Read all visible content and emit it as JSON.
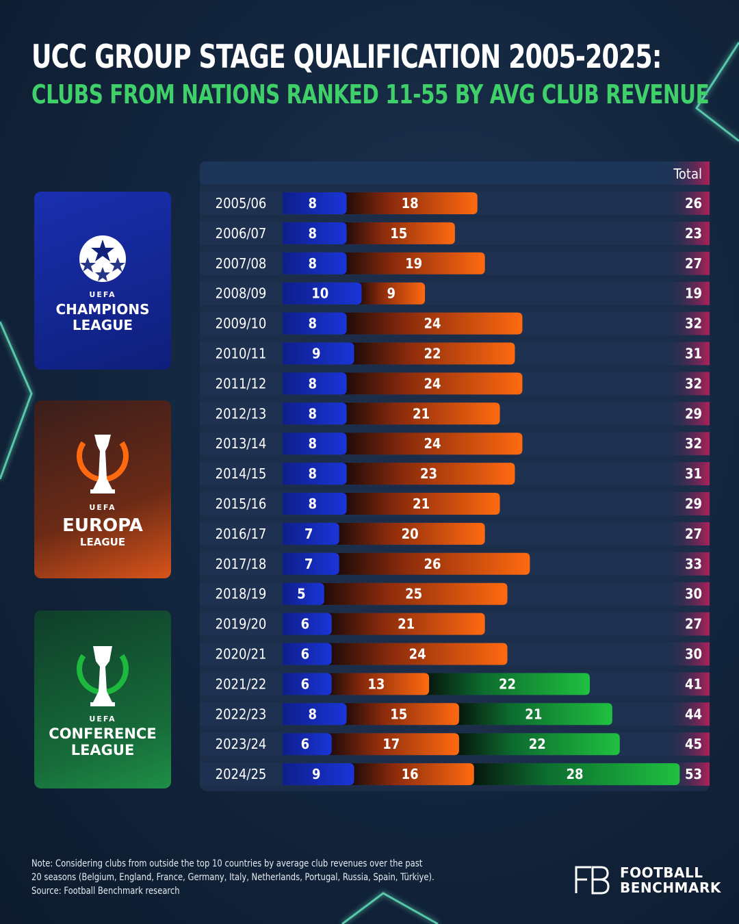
{
  "title": "UCC GROUP STAGE QUALIFICATION 2005-2025:",
  "subtitle": "CLUBS FROM NATIONS RANKED 11-55 BY AVG CLUB REVENUE",
  "colors": {
    "champions_league": "#1428b8",
    "europa_league": "#ff6a10",
    "conference_league": "#1fb83f",
    "title_accent": "#3fd06a",
    "total_column": "#b0205a"
  },
  "competitions": {
    "ucl": {
      "uefa": "UEFA",
      "line1": "CHAMPIONS",
      "line2": "LEAGUE",
      "icon": "starball-icon"
    },
    "uel": {
      "uefa": "UEFA",
      "line1": "EUROPA",
      "line2": "LEAGUE",
      "icon": "europa-trophy-icon"
    },
    "uecl": {
      "uefa": "UEFA",
      "line1": "CONFERENCE",
      "line2": "LEAGUE",
      "icon": "conference-trophy-icon"
    }
  },
  "chart_data": {
    "type": "bar",
    "orientation": "horizontal",
    "stacked": true,
    "total_header": "Total",
    "categories": [
      "2005/06",
      "2006/07",
      "2007/08",
      "2008/09",
      "2009/10",
      "2010/11",
      "2011/12",
      "2012/13",
      "2013/14",
      "2014/15",
      "2015/16",
      "2016/17",
      "2017/18",
      "2018/19",
      "2019/20",
      "2020/21",
      "2021/22",
      "2022/23",
      "2023/24",
      "2024/25"
    ],
    "series": [
      {
        "key": "ucl",
        "values": [
          8,
          8,
          8,
          10,
          8,
          9,
          8,
          8,
          8,
          8,
          8,
          7,
          7,
          5,
          6,
          6,
          6,
          8,
          6,
          9
        ]
      },
      {
        "key": "uel",
        "values": [
          18,
          15,
          19,
          9,
          24,
          22,
          24,
          21,
          24,
          23,
          21,
          20,
          26,
          25,
          21,
          24,
          13,
          15,
          17,
          16
        ]
      },
      {
        "key": "uecl",
        "values": [
          0,
          0,
          0,
          0,
          0,
          0,
          0,
          0,
          0,
          0,
          0,
          0,
          0,
          0,
          0,
          0,
          22,
          21,
          22,
          28
        ]
      }
    ],
    "totals": [
      26,
      23,
      27,
      19,
      32,
      31,
      32,
      29,
      32,
      31,
      29,
      27,
      33,
      30,
      27,
      30,
      41,
      44,
      45,
      53
    ]
  },
  "note": {
    "line1": "Note: Considering clubs from outside the top 10 countries by average club revenues over the past",
    "line2": "20 seasons (Belgium, England, France, Germany, Italy, Netherlands, Portugal, Russia, Spain, Türkiye).",
    "line3": "Source: Football Benchmark research"
  },
  "brand": {
    "line1": "FOOTBALL",
    "line2": "BENCHMARK",
    "icon": "fb-logo-icon"
  }
}
